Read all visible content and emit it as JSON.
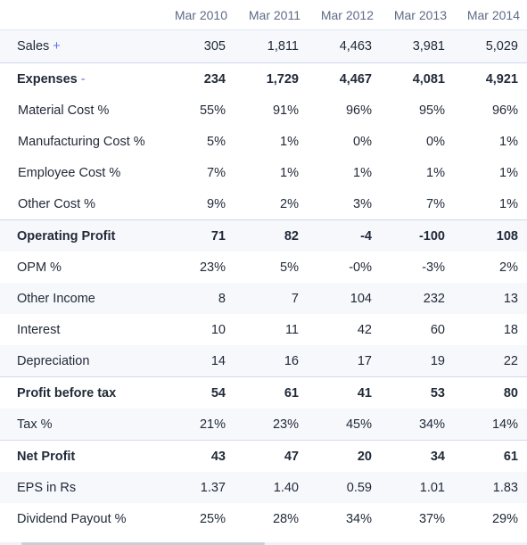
{
  "table": {
    "header": {
      "label": "",
      "years": [
        "Mar 2010",
        "Mar 2011",
        "Mar 2012",
        "Mar 2013",
        "Mar 2014"
      ]
    },
    "rows": [
      {
        "label": "Sales",
        "toggle": "+",
        "values": [
          "305",
          "1,811",
          "4,463",
          "3,981",
          "5,029"
        ]
      },
      {
        "label": "Expenses",
        "toggle": "-",
        "values": [
          "234",
          "1,729",
          "4,467",
          "4,081",
          "4,921"
        ]
      },
      {
        "label": "Material Cost %",
        "values": [
          "55%",
          "91%",
          "96%",
          "95%",
          "96%"
        ]
      },
      {
        "label": "Manufacturing Cost %",
        "values": [
          "5%",
          "1%",
          "0%",
          "0%",
          "1%"
        ]
      },
      {
        "label": "Employee Cost %",
        "values": [
          "7%",
          "1%",
          "1%",
          "1%",
          "1%"
        ]
      },
      {
        "label": "Other Cost %",
        "values": [
          "9%",
          "2%",
          "3%",
          "7%",
          "1%"
        ]
      },
      {
        "label": "Operating Profit",
        "values": [
          "71",
          "82",
          "-4",
          "-100",
          "108"
        ]
      },
      {
        "label": "OPM %",
        "values": [
          "23%",
          "5%",
          "-0%",
          "-3%",
          "2%"
        ]
      },
      {
        "label": "Other Income",
        "values": [
          "8",
          "7",
          "104",
          "232",
          "13"
        ]
      },
      {
        "label": "Interest",
        "values": [
          "10",
          "11",
          "42",
          "60",
          "18"
        ]
      },
      {
        "label": "Depreciation",
        "values": [
          "14",
          "16",
          "17",
          "19",
          "22"
        ]
      },
      {
        "label": "Profit before tax",
        "values": [
          "54",
          "61",
          "41",
          "53",
          "80"
        ]
      },
      {
        "label": "Tax %",
        "values": [
          "21%",
          "23%",
          "45%",
          "34%",
          "14%"
        ]
      },
      {
        "label": "Net Profit",
        "values": [
          "43",
          "47",
          "20",
          "34",
          "61"
        ]
      },
      {
        "label": "EPS in Rs",
        "values": [
          "1.37",
          "1.40",
          "0.59",
          "1.01",
          "1.83"
        ]
      },
      {
        "label": "Dividend Payout %",
        "values": [
          "25%",
          "28%",
          "34%",
          "37%",
          "29%"
        ]
      }
    ]
  },
  "colors": {
    "header_text": "#5e6b86",
    "stripe": "#f6f8fc",
    "toggle": "#5c6ef0",
    "border": "#cfd9ec"
  }
}
